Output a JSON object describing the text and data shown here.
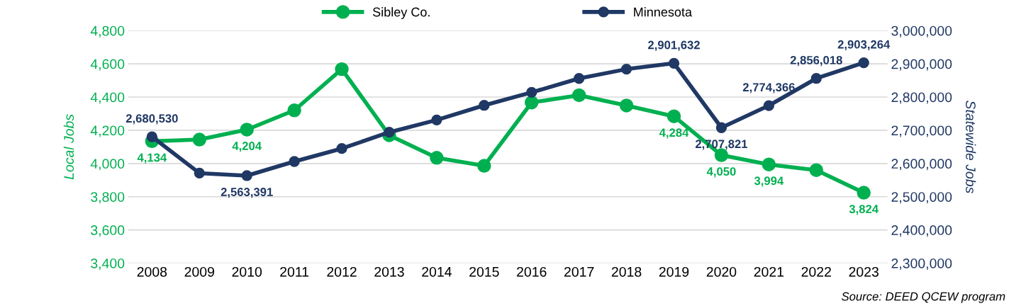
{
  "chart_data": {
    "type": "line",
    "categories": [
      "2008",
      "2009",
      "2010",
      "2011",
      "2012",
      "2013",
      "2014",
      "2015",
      "2016",
      "2017",
      "2018",
      "2019",
      "2020",
      "2021",
      "2022",
      "2023"
    ],
    "series": [
      {
        "name": "Sibley Co.",
        "color": "#00b050",
        "values": [
          4134,
          4144,
          4204,
          4320,
          4568,
          4170,
          4034,
          3986,
          4367,
          4411,
          4349,
          4284,
          4050,
          3994,
          3960,
          3824
        ],
        "value_labels": [
          "4,134",
          null,
          "4,204",
          null,
          null,
          null,
          null,
          null,
          null,
          null,
          null,
          "4,284",
          "4,050",
          "3,994",
          null,
          "3,824"
        ]
      },
      {
        "name": "Minnesota",
        "color": "#203864",
        "axis": "y2",
        "values": [
          2680530,
          2571000,
          2563391,
          2606000,
          2645000,
          2694000,
          2731000,
          2775000,
          2814000,
          2856000,
          2884000,
          2901632,
          2707821,
          2774366,
          2856018,
          2903264
        ],
        "value_labels": [
          "2,680,530",
          null,
          "2,563,391",
          null,
          null,
          null,
          null,
          null,
          null,
          null,
          null,
          "2,901,632",
          "2,707,821",
          "2,774,366",
          "2,856,018",
          "2,903,264"
        ]
      }
    ],
    "ylabel": "Local Jobs",
    "y2label": "Statewide Jobs",
    "ylim": [
      3400,
      4800
    ],
    "yticks": [
      {
        "value": 3400,
        "label": "3,400"
      },
      {
        "value": 3600,
        "label": "3,600"
      },
      {
        "value": 3800,
        "label": "3,800"
      },
      {
        "value": 4000,
        "label": "4,000"
      },
      {
        "value": 4200,
        "label": "4,200"
      },
      {
        "value": 4400,
        "label": "4,400"
      },
      {
        "value": 4600,
        "label": "4,600"
      },
      {
        "value": 4800,
        "label": "4,800"
      }
    ],
    "y2lim": [
      2300000,
      3000000
    ],
    "y2ticks": [
      {
        "value": 2300000,
        "label": "2,300,000"
      },
      {
        "value": 2400000,
        "label": "2,400,000"
      },
      {
        "value": 2500000,
        "label": "2,500,000"
      },
      {
        "value": 2600000,
        "label": "2,600,000"
      },
      {
        "value": 2700000,
        "label": "2,700,000"
      },
      {
        "value": 2800000,
        "label": "2,800,000"
      },
      {
        "value": 2900000,
        "label": "2,900,000"
      },
      {
        "value": 3000000,
        "label": "3,000,000"
      }
    ],
    "grid": "y",
    "legend": "top",
    "marker": "circle",
    "line_style": "solid",
    "annotations": [
      "Source: DEED QCEW program"
    ]
  }
}
